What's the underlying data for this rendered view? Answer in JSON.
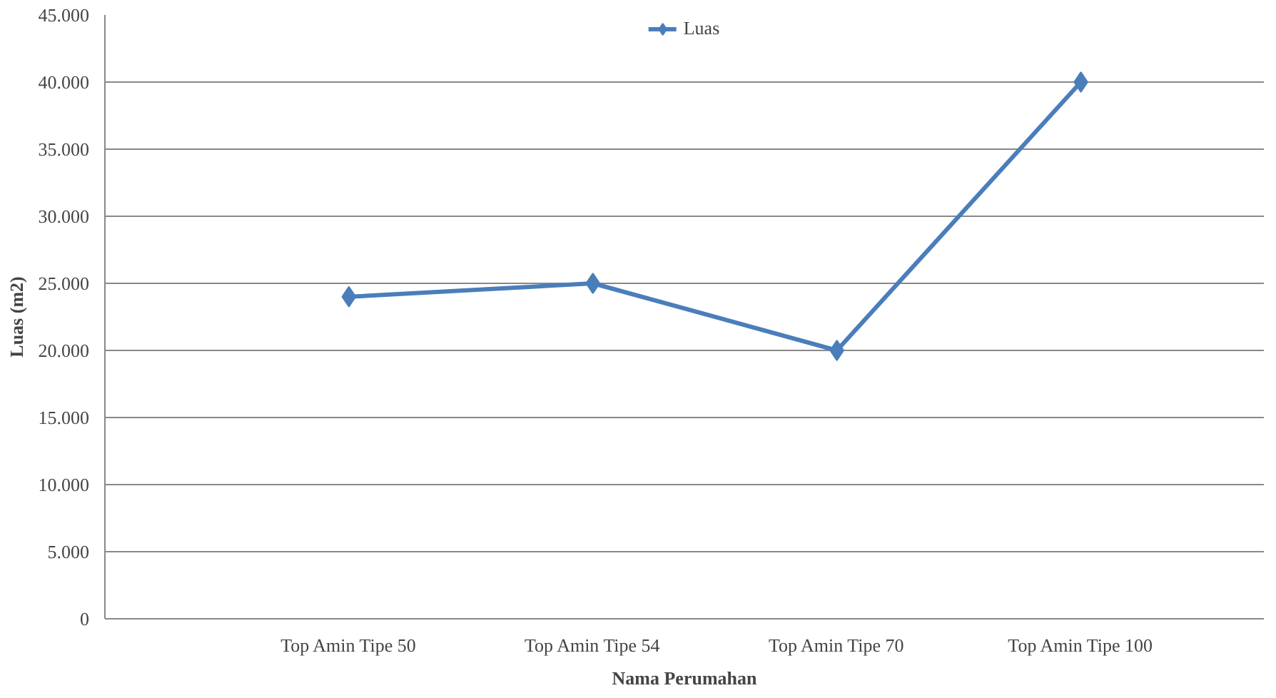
{
  "chart_data": {
    "type": "line",
    "xlabel": "Nama Perumahan",
    "ylabel": "Luas (m2)",
    "categories": [
      "Top Amin Tipe 50",
      "Top Amin Tipe 54",
      "Top Amin Tipe 70",
      "Top Amin Tipe 100"
    ],
    "series": [
      {
        "name": "Luas",
        "color": "#4a7ebb",
        "values": [
          24000,
          25000,
          20000,
          40000
        ]
      }
    ],
    "ylim": [
      0,
      45000
    ],
    "yticks": [
      {
        "value": 0,
        "label": "0"
      },
      {
        "value": 5000,
        "label": "5.000"
      },
      {
        "value": 10000,
        "label": "10.000"
      },
      {
        "value": 15000,
        "label": "15.000"
      },
      {
        "value": 20000,
        "label": "20.000"
      },
      {
        "value": 25000,
        "label": "25.000"
      },
      {
        "value": 30000,
        "label": "30.000"
      },
      {
        "value": 35000,
        "label": "35.000"
      },
      {
        "value": 40000,
        "label": "40.000"
      },
      {
        "value": 45000,
        "label": "45.000"
      }
    ],
    "grid": "y",
    "legend": "top",
    "marker": "diamond",
    "line_style": "solid"
  }
}
